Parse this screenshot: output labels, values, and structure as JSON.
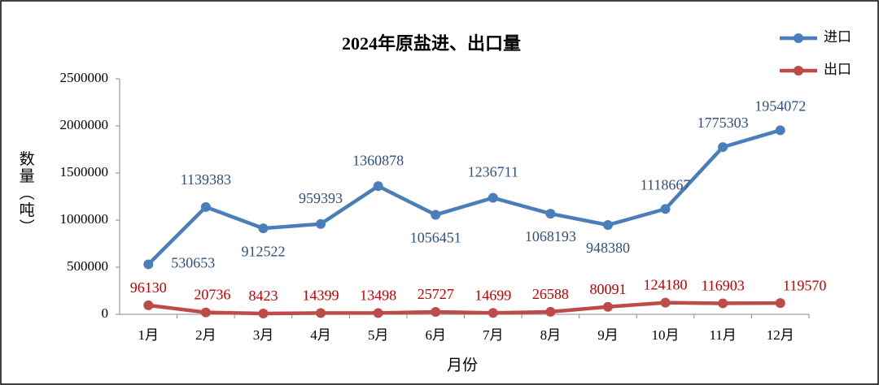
{
  "chart_data": {
    "type": "line",
    "title": "2024年原盐进、出口量",
    "x_label": "月份",
    "y_label": "数量（吨）",
    "categories": [
      "1月",
      "2月",
      "3月",
      "4月",
      "5月",
      "6月",
      "7月",
      "8月",
      "9月",
      "10月",
      "11月",
      "12月"
    ],
    "series": [
      {
        "name": "进口",
        "color": "#4a7ebb",
        "label_color": "#2f4f7f",
        "values": [
          530653,
          1139383,
          912522,
          959393,
          1360878,
          1056451,
          1236711,
          1068193,
          948380,
          1118667,
          1775303,
          1954072
        ]
      },
      {
        "name": "出口",
        "color": "#be4b48",
        "label_color": "#c00000",
        "values": [
          96130,
          20736,
          8423,
          14399,
          13498,
          25727,
          14699,
          26588,
          80091,
          124180,
          116903,
          119570
        ]
      }
    ],
    "ylim": [
      0,
      2500000
    ],
    "yticks": [
      0,
      500000,
      1000000,
      1500000,
      2000000,
      2500000
    ],
    "grid": false,
    "legend": "top-right"
  }
}
